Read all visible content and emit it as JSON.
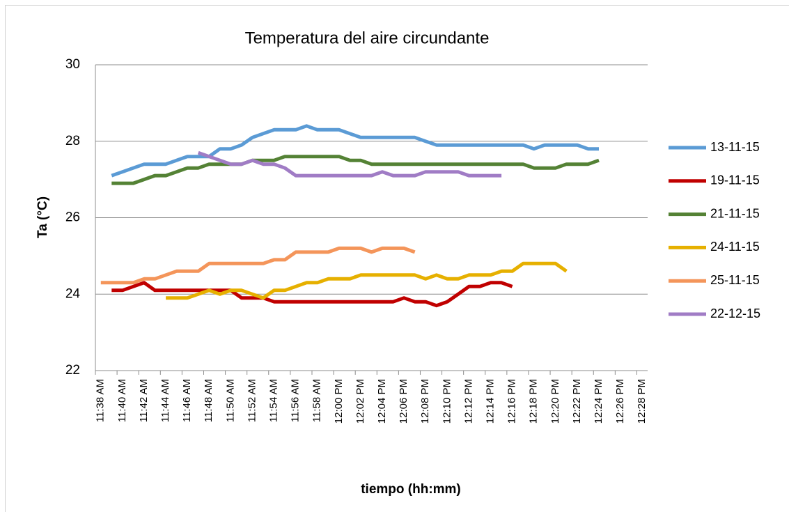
{
  "chart_data": {
    "type": "line",
    "title": "Temperatura del aire circundante",
    "x_label": "tiempo (hh:mm)",
    "y_label": "Ta (°C)",
    "categories": [
      "11:38 AM",
      null,
      "11:40 AM",
      null,
      "11:42 AM",
      null,
      "11:44 AM",
      null,
      "11:46 AM",
      null,
      "11:48 AM",
      null,
      "11:50 AM",
      null,
      "11:52 AM",
      null,
      "11:54 AM",
      null,
      "11:56 AM",
      null,
      "11:58 AM",
      null,
      "12:00 PM",
      null,
      "12:02 PM",
      null,
      "12:04 PM",
      null,
      "12:06 PM",
      null,
      "12:08 PM",
      null,
      "12:10 PM",
      null,
      "12:12 PM",
      null,
      "12:14 PM",
      null,
      "12:16 PM",
      null,
      "12:18 PM",
      null,
      "12:20 PM",
      null,
      "12:22 PM",
      null,
      "12:24 PM",
      null,
      "12:26 PM",
      null,
      "12:28 PM"
    ],
    "ylim": [
      22,
      30
    ],
    "yticks": [
      22,
      24,
      26,
      28,
      30
    ],
    "grid": true,
    "legend": "right",
    "series": [
      {
        "name": "13-11-15",
        "color": "#5b9bd5",
        "values": [
          null,
          27.1,
          27.2,
          27.3,
          27.4,
          27.4,
          27.4,
          27.5,
          27.6,
          27.6,
          27.6,
          27.8,
          27.8,
          27.9,
          28.1,
          28.2,
          28.3,
          28.3,
          28.3,
          28.4,
          28.3,
          28.3,
          28.3,
          28.2,
          28.1,
          28.1,
          28.1,
          28.1,
          28.1,
          28.1,
          28.0,
          27.9,
          27.9,
          27.9,
          27.9,
          27.9,
          27.9,
          27.9,
          27.9,
          27.9,
          27.8,
          27.9,
          27.9,
          27.9,
          27.9,
          27.8,
          27.8,
          null,
          null,
          null,
          null
        ]
      },
      {
        "name": "19-11-15",
        "color": "#c00000",
        "values": [
          null,
          24.1,
          24.1,
          24.2,
          24.3,
          24.1,
          24.1,
          24.1,
          24.1,
          24.1,
          24.1,
          24.1,
          24.1,
          23.9,
          23.9,
          23.9,
          23.8,
          23.8,
          23.8,
          23.8,
          23.8,
          23.8,
          23.8,
          23.8,
          23.8,
          23.8,
          23.8,
          23.8,
          23.9,
          23.8,
          23.8,
          23.7,
          23.8,
          24.0,
          24.2,
          24.2,
          24.3,
          24.3,
          24.2,
          null,
          null,
          null,
          null,
          null,
          null,
          null,
          null,
          null,
          null,
          null,
          null
        ]
      },
      {
        "name": "21-11-15",
        "color": "#548235",
        "values": [
          null,
          26.9,
          26.9,
          26.9,
          27.0,
          27.1,
          27.1,
          27.2,
          27.3,
          27.3,
          27.4,
          27.4,
          27.4,
          27.4,
          27.5,
          27.5,
          27.5,
          27.6,
          27.6,
          27.6,
          27.6,
          27.6,
          27.6,
          27.5,
          27.5,
          27.4,
          27.4,
          27.4,
          27.4,
          27.4,
          27.4,
          27.4,
          27.4,
          27.4,
          27.4,
          27.4,
          27.4,
          27.4,
          27.4,
          27.4,
          27.3,
          27.3,
          27.3,
          27.4,
          27.4,
          27.4,
          27.5,
          null,
          null,
          null,
          null
        ]
      },
      {
        "name": "24-11-15",
        "color": "#e6b000",
        "values": [
          null,
          null,
          null,
          null,
          null,
          null,
          23.9,
          23.9,
          23.9,
          24.0,
          24.1,
          24.0,
          24.1,
          24.1,
          24.0,
          23.9,
          24.1,
          24.1,
          24.2,
          24.3,
          24.3,
          24.4,
          24.4,
          24.4,
          24.5,
          24.5,
          24.5,
          24.5,
          24.5,
          24.5,
          24.4,
          24.5,
          24.4,
          24.4,
          24.5,
          24.5,
          24.5,
          24.6,
          24.6,
          24.8,
          24.8,
          24.8,
          24.8,
          24.6,
          null,
          null,
          null,
          null,
          null,
          null,
          null
        ]
      },
      {
        "name": "25-11-15",
        "color": "#f4955a",
        "values": [
          24.3,
          24.3,
          24.3,
          24.3,
          24.4,
          24.4,
          24.5,
          24.6,
          24.6,
          24.6,
          24.8,
          24.8,
          24.8,
          24.8,
          24.8,
          24.8,
          24.9,
          24.9,
          25.1,
          25.1,
          25.1,
          25.1,
          25.2,
          25.2,
          25.2,
          25.1,
          25.2,
          25.2,
          25.2,
          25.1,
          null,
          null,
          null,
          null,
          null,
          null,
          null,
          null,
          null,
          null,
          null,
          null,
          null,
          null,
          null,
          null,
          null,
          null,
          null,
          null,
          null
        ]
      },
      {
        "name": "22-12-15",
        "color": "#a07cc5",
        "values": [
          null,
          null,
          null,
          null,
          null,
          null,
          null,
          null,
          null,
          27.7,
          27.6,
          27.5,
          27.4,
          27.4,
          27.5,
          27.4,
          27.4,
          27.3,
          27.1,
          27.1,
          27.1,
          27.1,
          27.1,
          27.1,
          27.1,
          27.1,
          27.2,
          27.1,
          27.1,
          27.1,
          27.2,
          27.2,
          27.2,
          27.2,
          27.1,
          27.1,
          27.1,
          27.1,
          null,
          null,
          null,
          null,
          null,
          null,
          null,
          null,
          null,
          null,
          null,
          null,
          null
        ]
      }
    ]
  }
}
